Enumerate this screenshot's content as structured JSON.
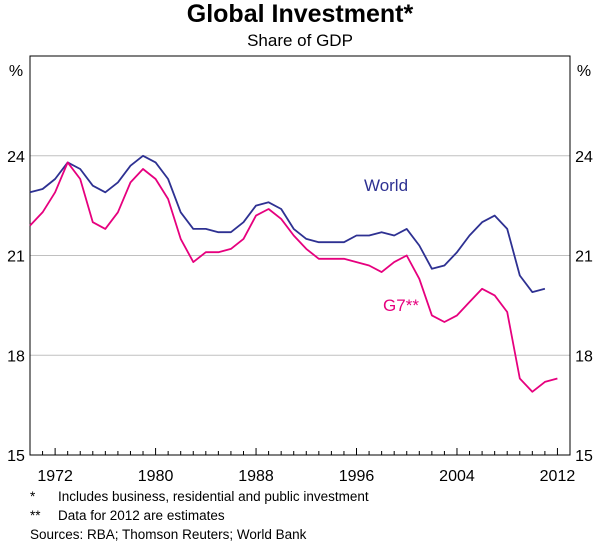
{
  "chart_data": {
    "type": "line",
    "title": "Global Investment*",
    "subtitle": "Share of GDP",
    "ylabel_left": "%",
    "ylabel_right": "%",
    "ylim": [
      15,
      27
    ],
    "yticks": [
      15,
      18,
      21,
      24
    ],
    "xlim": [
      1970,
      2013
    ],
    "xticks": [
      1972,
      1980,
      1988,
      1996,
      2004,
      2012
    ],
    "grid": true,
    "series": [
      {
        "name": "World",
        "color": "#2e3192",
        "x": [
          1970,
          1971,
          1972,
          1973,
          1974,
          1975,
          1976,
          1977,
          1978,
          1979,
          1980,
          1981,
          1982,
          1983,
          1984,
          1985,
          1986,
          1987,
          1988,
          1989,
          1990,
          1991,
          1992,
          1993,
          1994,
          1995,
          1996,
          1997,
          1998,
          1999,
          2000,
          2001,
          2002,
          2003,
          2004,
          2005,
          2006,
          2007,
          2008,
          2009,
          2010,
          2011
        ],
        "y": [
          22.9,
          23.0,
          23.3,
          23.8,
          23.6,
          23.1,
          22.9,
          23.2,
          23.7,
          24.0,
          23.8,
          23.3,
          22.3,
          21.8,
          21.8,
          21.7,
          21.7,
          22.0,
          22.5,
          22.6,
          22.4,
          21.8,
          21.5,
          21.4,
          21.4,
          21.4,
          21.6,
          21.6,
          21.7,
          21.6,
          21.8,
          21.3,
          20.6,
          20.7,
          21.1,
          21.6,
          22.0,
          22.2,
          21.8,
          20.4,
          19.9,
          20.0
        ]
      },
      {
        "name": "G7**",
        "color": "#e6007e",
        "x": [
          1970,
          1971,
          1972,
          1973,
          1974,
          1975,
          1976,
          1977,
          1978,
          1979,
          1980,
          1981,
          1982,
          1983,
          1984,
          1985,
          1986,
          1987,
          1988,
          1989,
          1990,
          1991,
          1992,
          1993,
          1994,
          1995,
          1996,
          1997,
          1998,
          1999,
          2000,
          2001,
          2002,
          2003,
          2004,
          2005,
          2006,
          2007,
          2008,
          2009,
          2010,
          2011,
          2012
        ],
        "y": [
          21.9,
          22.3,
          22.9,
          23.8,
          23.3,
          22.0,
          21.8,
          22.3,
          23.2,
          23.6,
          23.3,
          22.7,
          21.5,
          20.8,
          21.1,
          21.1,
          21.2,
          21.5,
          22.2,
          22.4,
          22.1,
          21.6,
          21.2,
          20.9,
          20.9,
          20.9,
          20.8,
          20.7,
          20.5,
          20.8,
          21.0,
          20.3,
          19.2,
          19.0,
          19.2,
          19.6,
          20.0,
          19.8,
          19.3,
          17.3,
          16.9,
          17.2,
          17.3
        ]
      }
    ],
    "series_labels": [
      "World",
      "G7**"
    ],
    "footnotes": [
      {
        "mark": "*",
        "text": "Includes business, residential and public investment"
      },
      {
        "mark": "**",
        "text": "Data for 2012 are estimates"
      }
    ],
    "sources": "Sources: RBA; Thomson Reuters; World Bank"
  }
}
